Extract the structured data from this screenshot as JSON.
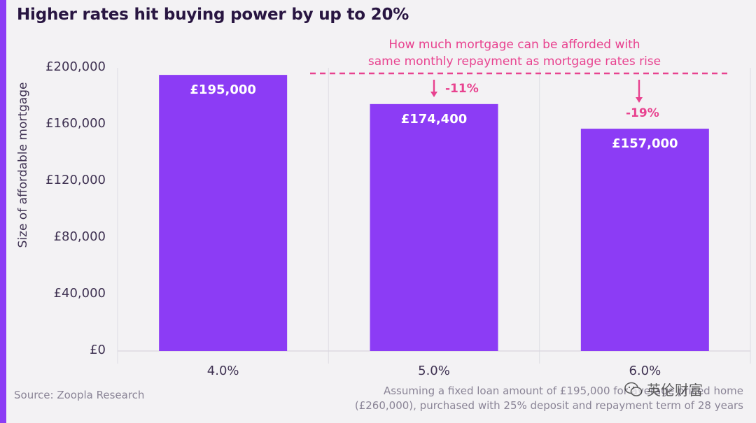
{
  "title": "Higher rates hit buying power by up to 20%",
  "colors": {
    "accent": "#8c3cf5",
    "bar": "#8c3cf5",
    "annotation": "#e8428f",
    "title": "#281541",
    "background": "#f3f2f4"
  },
  "annotation": {
    "line1": "How much mortgage can be afforded with",
    "line2": "same monthly repayment as mortgage rates rise"
  },
  "source": "Source: Zoopla Research",
  "footnote": {
    "line1": "Assuming a fixed loan amount of £195,000 for average priced home",
    "line2": "(£260,000), purchased with 25% deposit and repayment term of 28 years"
  },
  "watermark": {
    "icon": "wechat-icon",
    "text": "英伦财富"
  },
  "chart_data": {
    "type": "bar",
    "title": "Higher rates hit buying power by up to 20%",
    "xlabel": "",
    "ylabel": "Size of affordable mortgage",
    "categories": [
      "4.0%",
      "5.0%",
      "6.0%"
    ],
    "values": [
      195000,
      174400,
      157000
    ],
    "value_labels": [
      "£195,000",
      "£174,400",
      "£157,000"
    ],
    "change_labels": [
      "",
      "-11%",
      "-19%"
    ],
    "ylim": [
      0,
      200000
    ],
    "yticks": [
      0,
      40000,
      80000,
      120000,
      160000,
      200000
    ],
    "ytick_labels": [
      "£0",
      "£40,000",
      "£80,000",
      "£120,000",
      "£160,000",
      "£200,000"
    ],
    "grid": "vertical separators",
    "legend": "none"
  }
}
